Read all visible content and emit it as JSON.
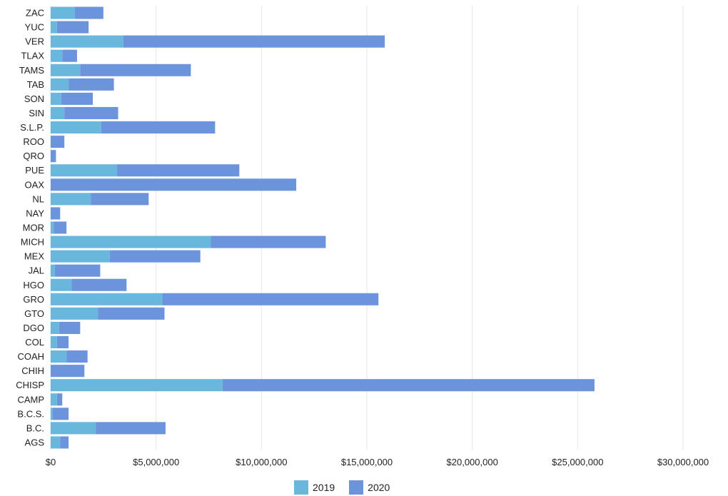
{
  "chart_data": {
    "type": "bar",
    "orientation": "horizontal",
    "stacked": true,
    "categories": [
      "ZAC",
      "YUC",
      "VER",
      "TLAX",
      "TAMS",
      "TAB",
      "SON",
      "SIN",
      "S.L.P.",
      "ROO",
      "QRO",
      "PUE",
      "OAX",
      "NL",
      "NAY",
      "MOR",
      "MICH",
      "MEX",
      "JAL",
      "HGO",
      "GRO",
      "GTO",
      "DGO",
      "COL",
      "COAH",
      "CHIH",
      "CHISP",
      "CAMP",
      "B.C.S.",
      "B.C.",
      "AGS"
    ],
    "series": [
      {
        "name": "2019",
        "color": "#69b7dd",
        "values": [
          1150000,
          300000,
          3450000,
          550000,
          1400000,
          850000,
          500000,
          650000,
          2400000,
          0,
          0,
          3150000,
          0,
          1900000,
          0,
          150000,
          7600000,
          2800000,
          200000,
          1000000,
          5300000,
          2250000,
          400000,
          300000,
          750000,
          0,
          8150000,
          300000,
          100000,
          2150000,
          450000
        ]
      },
      {
        "name": "2020",
        "color": "#6c94dd",
        "values": [
          1350000,
          1500000,
          12400000,
          700000,
          5250000,
          2150000,
          1500000,
          2550000,
          5400000,
          650000,
          250000,
          5800000,
          11650000,
          2750000,
          450000,
          600000,
          5450000,
          4300000,
          2150000,
          2600000,
          10250000,
          3150000,
          1000000,
          550000,
          1000000,
          1600000,
          17650000,
          250000,
          750000,
          3300000,
          400000
        ]
      }
    ],
    "xlim": [
      0,
      30000000
    ],
    "ticks": [
      0,
      5000000,
      10000000,
      15000000,
      20000000,
      25000000,
      30000000
    ],
    "tick_labels": [
      "$0",
      "$5,000,000",
      "$10,000,000",
      "$15,000,000",
      "$20,000,000",
      "$25,000,000",
      "$30,000,000"
    ],
    "xlabel": "",
    "ylabel": "",
    "grid": true,
    "legend_position": "bottom-center"
  }
}
